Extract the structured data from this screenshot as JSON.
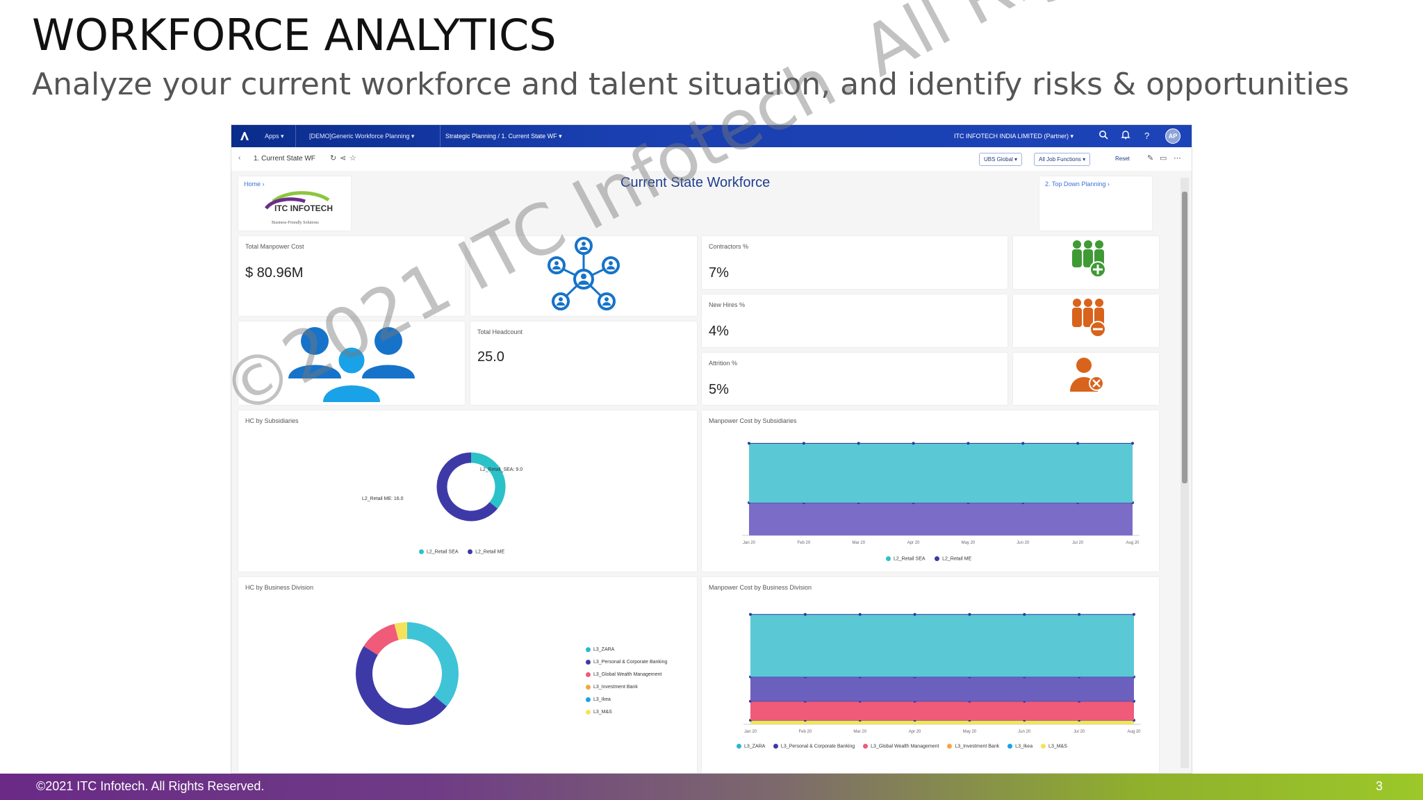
{
  "slide": {
    "title": "WORKFORCE ANALYTICS",
    "subtitle": "Analyze your current workforce and talent situation, and identify risks & opportunities",
    "footer": "©2021 ITC Infotech. All Rights Reserved.",
    "page_number": "3",
    "watermark": "©2021 ITC Infotech. All Rights Reserved"
  },
  "shellbar": {
    "apps": "Apps",
    "file": "[DEMO]Generic Workforce Planning",
    "path": "Strategic Planning / 1. Current State WF",
    "company": "ITC INFOTECH INDIA LIMITED (Partner)",
    "avatar": "AP"
  },
  "toolbar": {
    "story": "1. Current State WF",
    "filter_1": "UBS Global",
    "filter_2": "All Job Functions",
    "reset": "Reset"
  },
  "page": {
    "home_link": "Home ›",
    "header": "Current State Workforce",
    "next_link": "2. Top Down Planning ›",
    "logo_text": "ITC INFOTECH",
    "logo_tagline": "Business-Friendly Solutions"
  },
  "kpis": {
    "manpower_cost_label": "Total Manpower Cost",
    "manpower_cost_value": "$ 80.96M",
    "headcount_label": "Total Headcount",
    "headcount_value": "25.0",
    "contractors_label": "Contractors %",
    "contractors_value": "7%",
    "new_hires_label": "New Hires %",
    "new_hires_value": "4%",
    "attrition_label": "Attrition %",
    "attrition_value": "5%"
  },
  "colors": {
    "icon_blue": "#1673c9",
    "icon_green": "#3f9a35",
    "icon_orange": "#d8631c",
    "teal": "#5bc8d6",
    "purple": "#6c60bf",
    "navy": "#3d3aa8",
    "pink": "#ef5b79",
    "orange": "#f7a440",
    "yellow": "#f4e35a"
  },
  "charts": {
    "hc_subsidiaries": {
      "title": "HC by Subsidiaries",
      "legend": [
        "L2_Retail SEA",
        "L2_Retail ME"
      ],
      "labels": [
        "L2_Retail_SEA: 9.0",
        "L2_Retail ME: 16.0"
      ]
    },
    "cost_subsidiaries": {
      "title": "Manpower Cost by Subsidiaries",
      "legend": [
        "L2_Retail SEA",
        "L2_Retail ME"
      ]
    },
    "hc_division": {
      "title": "HC by Business Division",
      "legend": [
        "L3_ZARA",
        "L3_Personal & Corporate Banking",
        "L3_Global Wealth Management",
        "L3_Investment Bank",
        "L3_Ikea",
        "L3_M&S"
      ]
    },
    "cost_division": {
      "title": "Manpower Cost by Business Division",
      "legend": [
        "L3_ZARA",
        "L3_Personal & Corporate Banking",
        "L3_Global Wealth Management",
        "L3_Investment Bank",
        "L3_Ikea",
        "L3_M&S"
      ]
    }
  },
  "chart_data": [
    {
      "type": "pie",
      "title": "HC by Subsidiaries",
      "categories": [
        "L2_Retail SEA",
        "L2_Retail ME"
      ],
      "values": [
        9.0,
        16.0
      ]
    },
    {
      "type": "area",
      "title": "Manpower Cost by Subsidiaries",
      "categories": [
        "Jan 20",
        "Feb 20",
        "Mar 20",
        "Apr 20",
        "May 20",
        "Jun 20",
        "Jul 20",
        "Aug 20"
      ],
      "series": [
        {
          "name": "L2_Retail SEA",
          "values": [
            3.2,
            3.2,
            3.2,
            3.2,
            3.2,
            3.2,
            3.2,
            3.2
          ]
        },
        {
          "name": "L2_Retail ME",
          "values": [
            5.8,
            5.8,
            5.8,
            5.8,
            5.8,
            5.8,
            5.8,
            5.8
          ]
        }
      ]
    },
    {
      "type": "pie",
      "title": "HC by Business Division",
      "categories": [
        "L3_ZARA",
        "L3_Personal & Corporate Banking",
        "L3_Global Wealth Management",
        "L3_M&S"
      ],
      "values": [
        9,
        12,
        3,
        1
      ]
    },
    {
      "type": "area",
      "title": "Manpower Cost by Business Division",
      "categories": [
        "Jan 20",
        "Feb 20",
        "Mar 20",
        "Apr 20",
        "May 20",
        "Jun 20",
        "Jul 20",
        "Aug 20"
      ],
      "series": [
        {
          "name": "L3_M&S",
          "values": [
            0.3,
            0.3,
            0.3,
            0.3,
            0.3,
            0.3,
            0.3,
            0.3
          ]
        },
        {
          "name": "L3_Global Wealth Management",
          "values": [
            1.4,
            1.4,
            1.4,
            1.4,
            1.4,
            1.4,
            1.4,
            1.4
          ]
        },
        {
          "name": "L3_Personal & Corporate Banking",
          "values": [
            1.8,
            1.8,
            1.8,
            1.8,
            1.8,
            1.8,
            1.8,
            1.8
          ]
        },
        {
          "name": "L3_ZARA",
          "values": [
            4.6,
            4.6,
            4.6,
            4.6,
            4.6,
            4.6,
            4.6,
            4.6
          ]
        }
      ]
    }
  ]
}
